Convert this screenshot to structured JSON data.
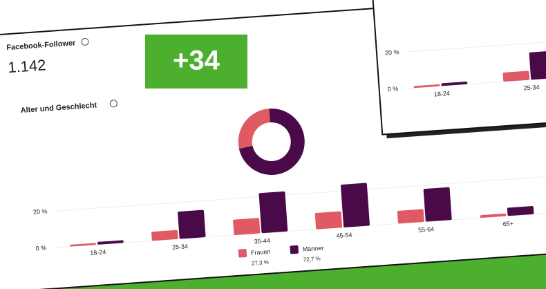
{
  "header": {
    "title": "Facebook-Follower",
    "count": "1.142",
    "change": "+34",
    "section": "Alter und Geschlecht"
  },
  "chart_data": [
    {
      "type": "pie",
      "values": [
        27.3,
        72.7
      ],
      "value_labels": [
        "27,3 %",
        "72,7 %"
      ],
      "colors": [
        "#e05a64",
        "#4a0a4a"
      ]
    },
    {
      "type": "bar",
      "categories": [
        "18-24",
        "25-34",
        "35-44",
        "45-54",
        "55-64",
        "65+"
      ],
      "series": [
        {
          "name": "Frauen",
          "color": "#e05a64",
          "values": [
            1,
            5,
            8.5,
            9,
            7,
            1.5
          ]
        },
        {
          "name": "Männer",
          "color": "#4a0a4a",
          "values": [
            1.5,
            15,
            22,
            23.5,
            18,
            4.5
          ]
        }
      ],
      "ylim": [
        0,
        25
      ],
      "yticks": [
        {
          "value": 0,
          "label": "0 %"
        },
        {
          "value": 20,
          "label": "20 %"
        }
      ],
      "grid": true
    }
  ]
}
